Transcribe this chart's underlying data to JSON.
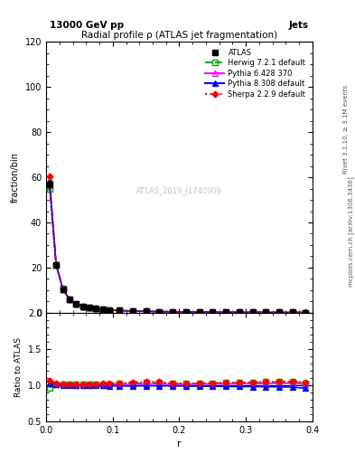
{
  "title": "Radial profile ρ (ATLAS jet fragmentation)",
  "top_left_label": "13000 GeV pp",
  "top_right_label": "Jets",
  "ylabel_main": "fraction/bin",
  "ylabel_ratio": "Ratio to ATLAS",
  "xlabel": "r",
  "right_label_top": "Rivet 3.1.10, ≥ 3.1M events",
  "right_label_bottom": "mcplots.cern.ch [arXiv:1306.3436]",
  "watermark": "ATLAS_2019_I1740909",
  "ylim_main": [
    0,
    120
  ],
  "yticks_main": [
    0,
    20,
    40,
    60,
    80,
    100,
    120
  ],
  "ylim_ratio": [
    0.5,
    2.0
  ],
  "yticks_ratio": [
    0.5,
    1.0,
    1.5,
    2.0
  ],
  "xlim": [
    0.0,
    0.4
  ],
  "xticks": [
    0.0,
    0.1,
    0.2,
    0.3,
    0.4
  ],
  "r_values": [
    0.005,
    0.015,
    0.025,
    0.035,
    0.045,
    0.055,
    0.065,
    0.075,
    0.085,
    0.095,
    0.11,
    0.13,
    0.15,
    0.17,
    0.19,
    0.21,
    0.23,
    0.25,
    0.27,
    0.29,
    0.31,
    0.33,
    0.35,
    0.37,
    0.39
  ],
  "atlas_values": [
    57.0,
    21.0,
    10.5,
    6.0,
    3.8,
    2.8,
    2.2,
    1.8,
    1.5,
    1.3,
    1.0,
    0.8,
    0.65,
    0.55,
    0.48,
    0.42,
    0.37,
    0.33,
    0.3,
    0.27,
    0.25,
    0.23,
    0.21,
    0.19,
    0.18
  ],
  "atlas_errors": [
    1.5,
    0.5,
    0.3,
    0.2,
    0.1,
    0.1,
    0.08,
    0.07,
    0.06,
    0.05,
    0.04,
    0.04,
    0.03,
    0.03,
    0.02,
    0.02,
    0.02,
    0.02,
    0.02,
    0.02,
    0.02,
    0.02,
    0.02,
    0.02,
    0.02
  ],
  "herwig_values": [
    55.0,
    21.2,
    10.6,
    6.1,
    3.85,
    2.82,
    2.22,
    1.82,
    1.52,
    1.32,
    1.02,
    0.82,
    0.67,
    0.57,
    0.49,
    0.43,
    0.38,
    0.34,
    0.31,
    0.28,
    0.26,
    0.24,
    0.22,
    0.2,
    0.185
  ],
  "pythia6_values": [
    59.0,
    21.5,
    10.7,
    6.05,
    3.82,
    2.81,
    2.21,
    1.81,
    1.51,
    1.31,
    1.01,
    0.81,
    0.66,
    0.56,
    0.485,
    0.425,
    0.375,
    0.335,
    0.305,
    0.275,
    0.255,
    0.235,
    0.215,
    0.195,
    0.182
  ],
  "pythia8_values": [
    58.0,
    21.3,
    10.55,
    6.02,
    3.81,
    2.79,
    2.19,
    1.79,
    1.49,
    1.29,
    0.99,
    0.79,
    0.645,
    0.545,
    0.475,
    0.415,
    0.365,
    0.325,
    0.295,
    0.265,
    0.245,
    0.225,
    0.205,
    0.185,
    0.172
  ],
  "sherpa_values": [
    60.5,
    21.4,
    10.6,
    6.08,
    3.84,
    2.83,
    2.23,
    1.83,
    1.53,
    1.33,
    1.03,
    0.83,
    0.68,
    0.58,
    0.49,
    0.43,
    0.38,
    0.34,
    0.31,
    0.28,
    0.26,
    0.24,
    0.22,
    0.2,
    0.187
  ],
  "herwig_ratio": [
    0.965,
    1.01,
    1.01,
    1.017,
    1.013,
    1.007,
    1.009,
    1.011,
    1.013,
    1.015,
    1.02,
    1.025,
    1.031,
    1.036,
    1.021,
    1.024,
    1.027,
    1.03,
    1.033,
    1.037,
    1.04,
    1.043,
    1.047,
    1.053,
    1.028
  ],
  "pythia6_ratio": [
    1.035,
    1.024,
    1.019,
    1.008,
    1.005,
    1.004,
    1.005,
    1.006,
    1.007,
    1.008,
    1.01,
    1.013,
    1.015,
    1.018,
    1.01,
    1.012,
    1.014,
    1.015,
    1.017,
    1.019,
    1.02,
    1.022,
    1.024,
    1.026,
    1.011
  ],
  "pythia8_ratio": [
    1.018,
    1.014,
    1.005,
    1.003,
    1.003,
    0.996,
    0.995,
    0.994,
    0.993,
    0.992,
    0.99,
    0.988,
    0.992,
    0.991,
    0.99,
    0.988,
    0.986,
    0.985,
    0.983,
    0.981,
    0.98,
    0.978,
    0.976,
    0.974,
    0.956
  ],
  "sherpa_ratio": [
    1.062,
    1.019,
    1.01,
    1.013,
    1.011,
    1.011,
    1.014,
    1.017,
    1.02,
    1.023,
    1.03,
    1.038,
    1.046,
    1.055,
    1.021,
    1.024,
    1.027,
    1.03,
    1.033,
    1.037,
    1.04,
    1.043,
    1.048,
    1.053,
    1.039
  ],
  "herwig_ratio_err": [
    0.04,
    0.02,
    0.015,
    0.01,
    0.008,
    0.007,
    0.006,
    0.006,
    0.005,
    0.005,
    0.005,
    0.005,
    0.005,
    0.005,
    0.004,
    0.004,
    0.004,
    0.004,
    0.004,
    0.004,
    0.005,
    0.005,
    0.006,
    0.007,
    0.01
  ],
  "atlas_color": "#000000",
  "herwig_color": "#00aa00",
  "pythia6_color": "#ff00ff",
  "pythia8_color": "#0000ff",
  "sherpa_color": "#ff0000",
  "herwig_band_color": "#ccffcc",
  "background_color": "#ffffff",
  "legend_entries": [
    "ATLAS",
    "Herwig 7.2.1 default",
    "Pythia 6.428 370",
    "Pythia 8.308 default",
    "Sherpa 2.2.9 default"
  ]
}
